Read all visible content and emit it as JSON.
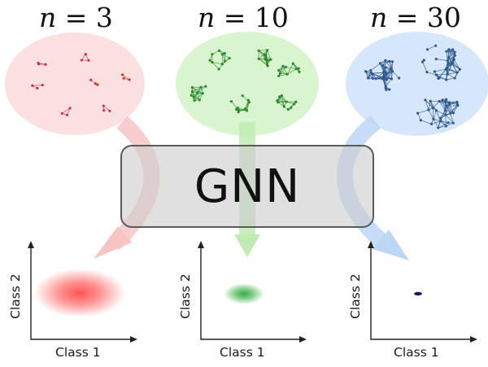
{
  "panels": [
    {
      "heading_var": "n",
      "heading_eq": " = ",
      "heading_value": "3",
      "color_fill": "#fbe0e0",
      "color_node": "#c8353a",
      "color_arrow": "#f7c4c4",
      "color_blob": "#ff4a4a",
      "xlabel": "Class 1",
      "ylabel": "Class 2"
    },
    {
      "heading_var": "n",
      "heading_eq": " = ",
      "heading_value": "10",
      "color_fill": "#d8f5cf",
      "color_node": "#2d8a2d",
      "color_arrow": "#c0ecb4",
      "color_blob": "#2ea83a",
      "xlabel": "Class 1",
      "ylabel": "Class 2"
    },
    {
      "heading_var": "n",
      "heading_eq": " = ",
      "heading_value": "30",
      "color_fill": "#d6e6fb",
      "color_node": "#2f5a8a",
      "color_arrow": "#bcd6f6",
      "color_blob": "#1c1c5a",
      "xlabel": "Class 1",
      "ylabel": "Class 2"
    }
  ],
  "center_box": {
    "label": "GNN"
  }
}
